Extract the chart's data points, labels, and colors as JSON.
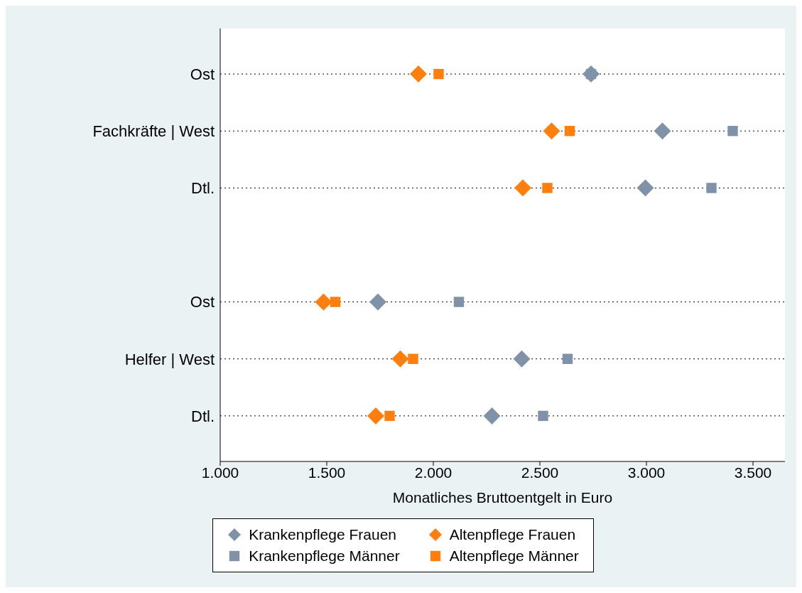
{
  "chart_data": {
    "type": "scatter",
    "orientation": "horizontal",
    "xlabel": "Monatliches Bruttoentgelt in Euro",
    "categories": [
      "Ost",
      "Fachkräfte | West",
      "Dtl.",
      null,
      "Ost",
      "Helfer | West",
      "Dtl."
    ],
    "xlim": [
      1000,
      3650
    ],
    "xticks": [
      {
        "value": 1000,
        "label": "1.000"
      },
      {
        "value": 1500,
        "label": "1.500"
      },
      {
        "value": 2000,
        "label": "2.000"
      },
      {
        "value": 2500,
        "label": "2.500"
      },
      {
        "value": 3000,
        "label": "3.000"
      },
      {
        "value": 3500,
        "label": "3.500"
      }
    ],
    "grid": "y",
    "line_style": "dotted",
    "legend": "bottom",
    "series": [
      {
        "name": "Krankenpflege Frauen",
        "color": "#7f92a8",
        "marker": "diamond",
        "values": [
          2740,
          3075,
          2995,
          null,
          1740,
          2415,
          2275
        ]
      },
      {
        "name": "Altenpflege Frauen",
        "color": "#ff7f0e",
        "marker": "diamond",
        "values": [
          1930,
          2555,
          2420,
          null,
          1485,
          1845,
          1730
        ]
      },
      {
        "name": "Krankenpflege Männer",
        "color": "#7f92a8",
        "marker": "square",
        "values": [
          2740,
          3405,
          3305,
          null,
          2120,
          2630,
          2515
        ]
      },
      {
        "name": "Altenpflege Männer",
        "color": "#ff7f0e",
        "marker": "square",
        "values": [
          2025,
          2640,
          2535,
          null,
          1540,
          1905,
          1795
        ]
      }
    ]
  }
}
